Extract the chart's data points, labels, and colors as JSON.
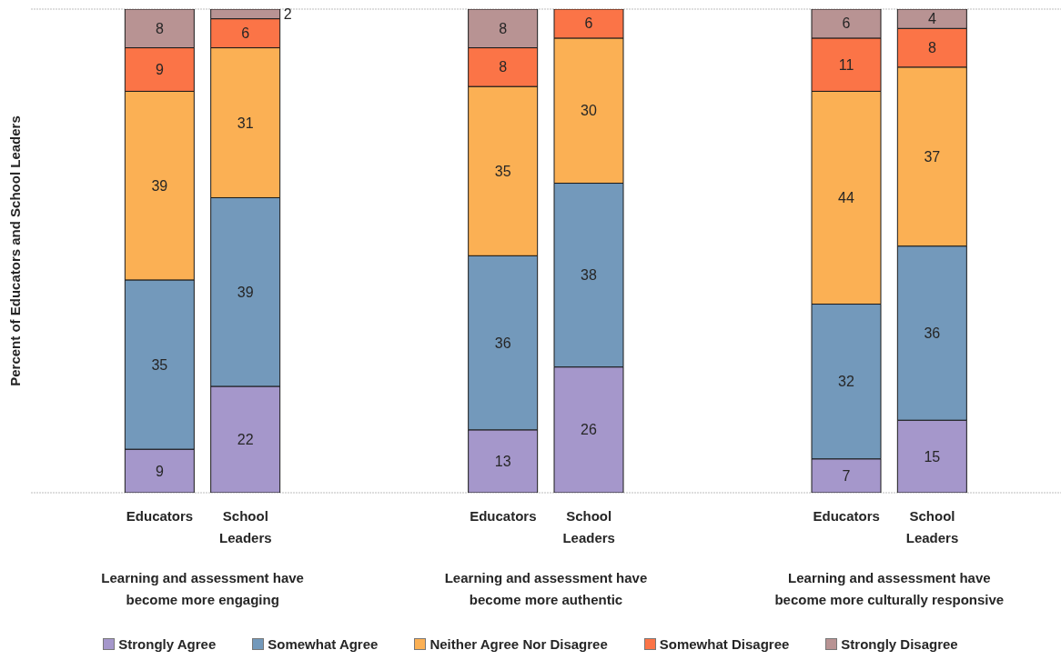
{
  "chart_data": {
    "type": "bar",
    "stacked": true,
    "ylabel": "Percent of Educators and School Leaders",
    "categories": [
      null,
      "Educators",
      "School Leaders",
      null,
      null,
      "Educators",
      "School Leaders",
      null,
      null,
      "Educators",
      "School Leaders",
      null
    ],
    "series": [
      {
        "name": "Strongly Agree",
        "color": "#a597cb",
        "values": [
          null,
          9,
          22,
          null,
          null,
          13,
          26,
          null,
          null,
          7,
          15,
          null
        ]
      },
      {
        "name": "Somewhat Agree",
        "color": "#7399bb",
        "values": [
          null,
          35,
          39,
          null,
          null,
          36,
          38,
          null,
          null,
          32,
          36,
          null
        ]
      },
      {
        "name": "Neither Agree Nor Disagree",
        "color": "#fbb054",
        "values": [
          null,
          39,
          31,
          null,
          null,
          35,
          30,
          null,
          null,
          44,
          37,
          null
        ]
      },
      {
        "name": "Somewhat Disagree",
        "color": "#fb7447",
        "values": [
          null,
          9,
          6,
          null,
          null,
          8,
          6,
          null,
          null,
          11,
          8,
          null
        ]
      },
      {
        "name": "Strongly Disagree",
        "color": "#b89393",
        "values": [
          null,
          8,
          2,
          null,
          null,
          8,
          null,
          null,
          null,
          6,
          4,
          null
        ]
      }
    ],
    "annotations": [
      "Learning and assessment have become more engaging",
      "Learning and assessment have become more authentic",
      "Learning and assessment have become more culturally responsive"
    ],
    "ylim": [
      0,
      100
    ],
    "grid": "y",
    "tick_labels": "x",
    "legend": "bottom",
    "data_labels": true
  }
}
